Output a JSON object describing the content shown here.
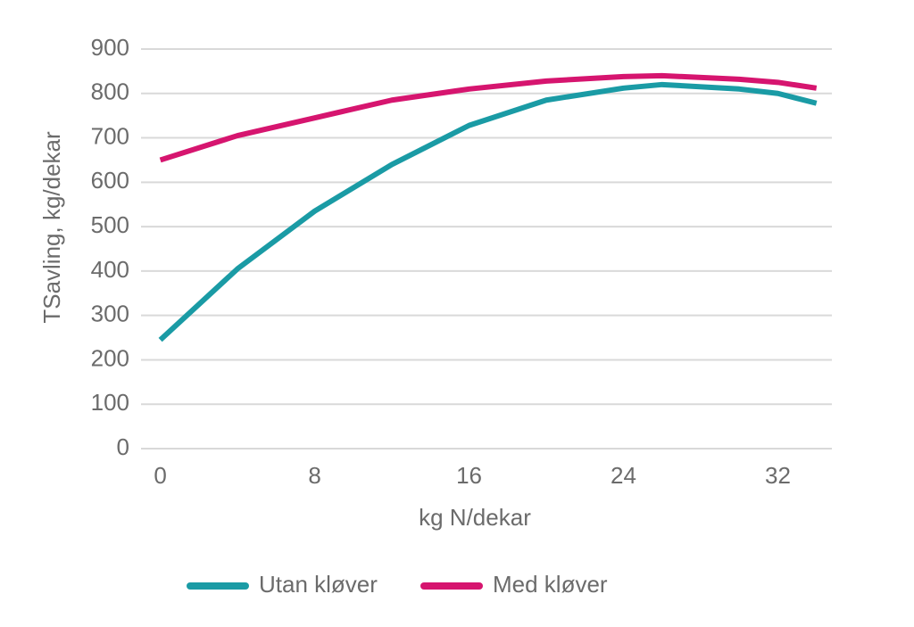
{
  "chart_data": {
    "type": "line",
    "x_label": "kg N/dekar",
    "y_label": "TSavling, kg/dekar",
    "x": [
      0,
      4,
      8,
      12,
      16,
      20,
      24,
      26,
      30,
      32,
      34
    ],
    "series": [
      {
        "name": "Utan kløver",
        "color": "#1a9ba5",
        "values": [
          245,
          405,
          535,
          640,
          728,
          785,
          812,
          820,
          810,
          800,
          778
        ]
      },
      {
        "name": "Med kløver",
        "color": "#d6156f",
        "values": [
          650,
          705,
          745,
          785,
          810,
          828,
          838,
          840,
          832,
          825,
          812
        ]
      }
    ],
    "xlim": [
      -1,
      34.8
    ],
    "xticks": [
      0,
      8,
      16,
      24,
      32
    ],
    "ylim": [
      0,
      900
    ],
    "yticks": [
      0,
      100,
      200,
      300,
      400,
      500,
      600,
      700,
      800,
      900
    ],
    "grid": true
  }
}
